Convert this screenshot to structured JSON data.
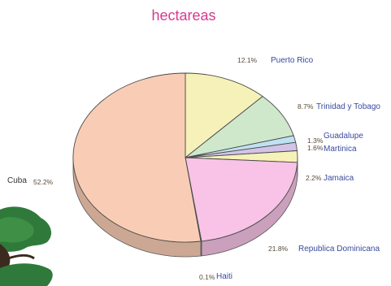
{
  "chart_data": {
    "type": "pie",
    "title": "hectareas",
    "unit": "%",
    "slices": [
      {
        "label": "Puerto Rico",
        "pct_text": "12.1%",
        "value": 12.1,
        "color": "#f6f1b8"
      },
      {
        "label": "Trinidad y Tobago",
        "pct_text": "8.7%",
        "value": 8.7,
        "color": "#cfe8cc"
      },
      {
        "label": "Guadalupe",
        "pct_text": "1.3%",
        "value": 1.3,
        "color": "#bfe2f2"
      },
      {
        "label": "Martinica",
        "pct_text": "1.6%",
        "value": 1.6,
        "color": "#d3c3e6"
      },
      {
        "label": "Jamaica",
        "pct_text": "2.2%",
        "value": 2.2,
        "color": "#f6f1b8"
      },
      {
        "label": "Republica Dominicana",
        "pct_text": "21.8%",
        "value": 21.8,
        "color": "#f8c3e6"
      },
      {
        "label": "Haiti",
        "pct_text": "0.1%",
        "value": 0.1,
        "color": "#e8d9ee"
      },
      {
        "label": "Cuba",
        "pct_text": "52.2%",
        "value": 52.2,
        "color": "#f9cdb5"
      }
    ]
  },
  "decoration": {
    "tree": "tree-illustration"
  }
}
